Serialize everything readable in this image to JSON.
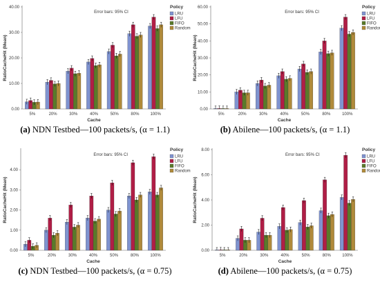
{
  "colors": {
    "LRU": "#7f93d0",
    "LFU": "#b01e46",
    "FIFO": "#5a7a2a",
    "Random": "#b08a3a",
    "axis": "#666666",
    "err": "#000000"
  },
  "chart_data": [
    {
      "type": "bar",
      "id": "a",
      "caption_label": "(a)",
      "caption_text": "NDN Testbed—100 packets/s, (α = 1.1)",
      "note": "Error bars: 95% CI",
      "legend_title": "Policy",
      "xlabel": "Cache",
      "ylabel": "RatioCacheHit (Mean)",
      "ylim": [
        0,
        40
      ],
      "yticks": [
        "0.00",
        "10.00",
        "20.00",
        "30.00",
        "40.00"
      ],
      "ytick_values": [
        0,
        10,
        20,
        30,
        40
      ],
      "categories": [
        "5%",
        "20%",
        "30%",
        "40%",
        "50%",
        "80%",
        "100%"
      ],
      "series": [
        {
          "name": "LRU",
          "values": [
            2.8,
            10.5,
            14.8,
            18.4,
            22.5,
            29.5,
            32.5
          ]
        },
        {
          "name": "LFU",
          "values": [
            3.3,
            11.2,
            16.0,
            19.8,
            25.0,
            33.0,
            36.0
          ]
        },
        {
          "name": "FIFO",
          "values": [
            2.6,
            9.8,
            13.8,
            17.0,
            20.8,
            28.5,
            31.5
          ]
        },
        {
          "name": "Random",
          "values": [
            2.7,
            10.0,
            14.0,
            17.3,
            21.5,
            29.0,
            33.0
          ]
        }
      ]
    },
    {
      "type": "bar",
      "id": "b",
      "caption_label": "(b)",
      "caption_text": "Abilene—100 packets/s, (α = 1.1)",
      "note": "Error bars: 95% CI",
      "legend_title": "Policy",
      "xlabel": "Cache",
      "ylabel": "RatioCacheHit (Mean)",
      "ylim": [
        0,
        60
      ],
      "yticks": [
        "0.00",
        "10.00",
        "20.00",
        "30.00",
        "40.00",
        "50.00",
        "60.00"
      ],
      "ytick_values": [
        0,
        10,
        20,
        30,
        40,
        50,
        60
      ],
      "categories": [
        "5%",
        "20%",
        "30%",
        "40%",
        "50%",
        "80%",
        "100%"
      ],
      "series": [
        {
          "name": "LRU",
          "values": [
            0.2,
            10.0,
            15.0,
            19.5,
            23.5,
            33.5,
            47.5
          ]
        },
        {
          "name": "LFU",
          "values": [
            0.3,
            11.0,
            17.0,
            22.0,
            26.5,
            40.0,
            54.0
          ]
        },
        {
          "name": "FIFO",
          "values": [
            0.2,
            9.5,
            13.5,
            17.5,
            21.5,
            32.5,
            44.0
          ]
        },
        {
          "name": "Random",
          "values": [
            0.2,
            9.5,
            14.0,
            18.0,
            22.0,
            33.0,
            45.0
          ]
        }
      ]
    },
    {
      "type": "bar",
      "id": "c",
      "caption_label": "(c)",
      "caption_text": "NDN Testbed—100 packets/s, (α = 0.75)",
      "note": "Error bars: 95% CI",
      "legend_title": "Policy",
      "xlabel": "Cache",
      "ylabel": "RatioCacheHit (Mean)",
      "ylim": [
        0,
        5
      ],
      "yticks": [
        "0.00",
        "1.00",
        "2.00",
        "3.00",
        "4.00"
      ],
      "ytick_values": [
        0,
        1,
        2,
        3,
        4
      ],
      "categories": [
        "5%",
        "20%",
        "30%",
        "40%",
        "50%",
        "80%",
        "100%"
      ],
      "series": [
        {
          "name": "LRU",
          "values": [
            0.3,
            1.0,
            1.4,
            1.6,
            2.0,
            2.7,
            2.9
          ]
        },
        {
          "name": "LFU",
          "values": [
            0.5,
            1.6,
            2.25,
            2.7,
            3.35,
            4.35,
            4.65
          ]
        },
        {
          "name": "FIFO",
          "values": [
            0.2,
            0.75,
            1.15,
            1.45,
            1.8,
            2.5,
            2.75
          ]
        },
        {
          "name": "Random",
          "values": [
            0.25,
            0.85,
            1.25,
            1.55,
            1.95,
            2.75,
            3.1
          ]
        }
      ]
    },
    {
      "type": "bar",
      "id": "d",
      "caption_label": "(d)",
      "caption_text": "Abilene—100 packets/s, (α = 0.75)",
      "note": "Error bars: 95% CI",
      "legend_title": "Policy",
      "xlabel": "Cache",
      "ylabel": "RatioCacheHit (Mean)",
      "ylim": [
        0,
        8
      ],
      "yticks": [
        "0.00",
        "2.00",
        "4.00",
        "6.00",
        "8.00"
      ],
      "ytick_values": [
        0,
        2,
        4,
        6,
        8
      ],
      "categories": [
        "5%",
        "20%",
        "30%",
        "40%",
        "50%",
        "80%",
        "100%"
      ],
      "series": [
        {
          "name": "LRU",
          "values": [
            0.02,
            0.95,
            1.45,
            1.9,
            2.2,
            3.15,
            4.2
          ]
        },
        {
          "name": "LFU",
          "values": [
            0.03,
            1.7,
            2.55,
            3.4,
            3.95,
            5.6,
            7.55
          ]
        },
        {
          "name": "FIFO",
          "values": [
            0.02,
            0.8,
            1.2,
            1.6,
            1.85,
            2.75,
            3.75
          ]
        },
        {
          "name": "Random",
          "values": [
            0.02,
            0.8,
            1.2,
            1.65,
            1.95,
            2.85,
            4.05
          ]
        }
      ]
    }
  ]
}
